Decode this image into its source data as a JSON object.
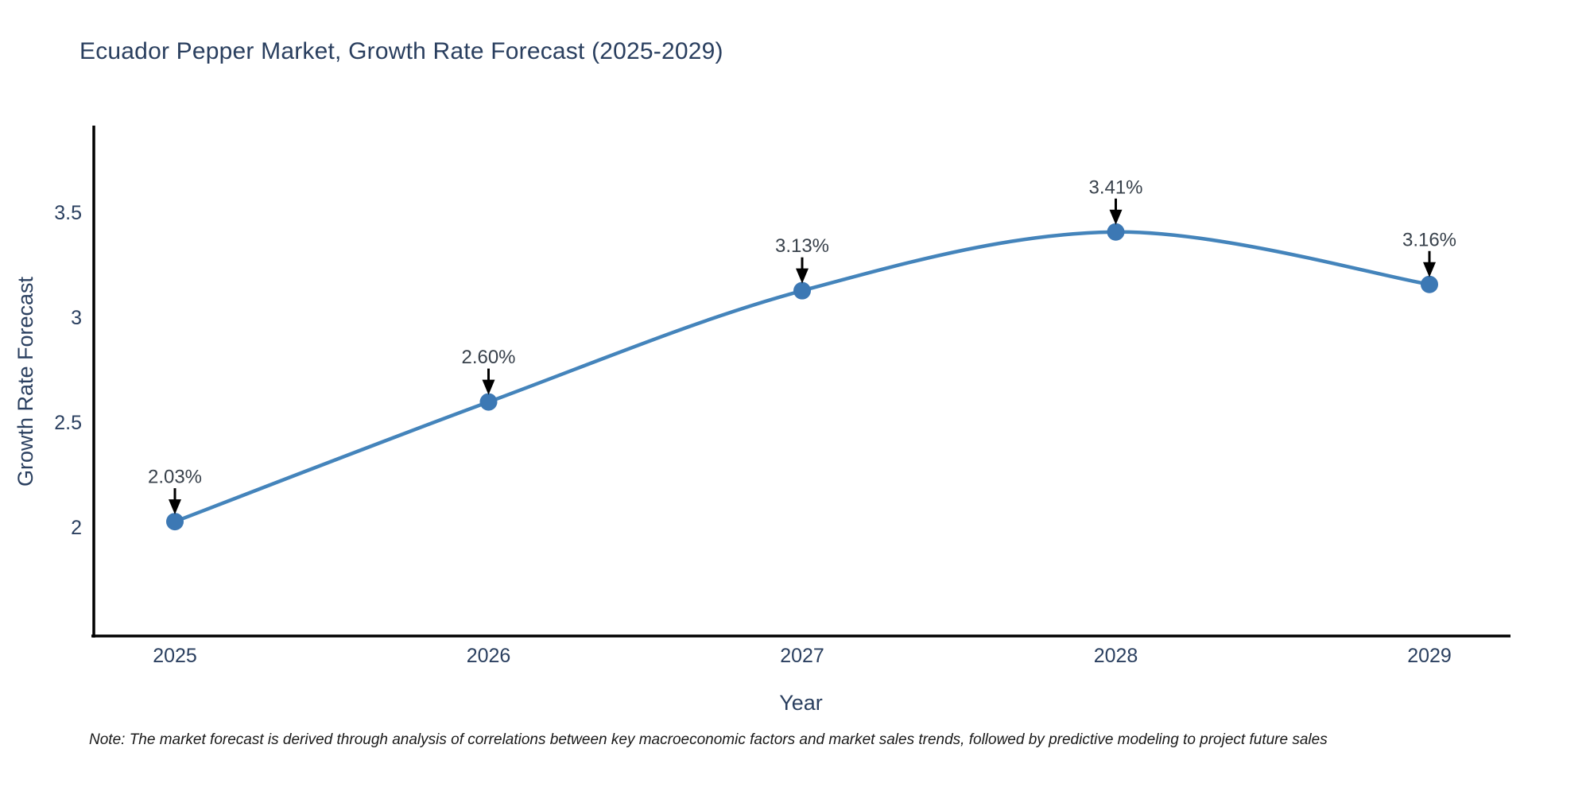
{
  "page": {
    "background": "#ffffff"
  },
  "chart_data": {
    "type": "line",
    "title": "Ecuador Pepper Market, Growth Rate Forecast (2025-2029)",
    "xlabel": "Year",
    "ylabel": "Growth Rate Forecast",
    "categories": [
      "2025",
      "2026",
      "2027",
      "2028",
      "2029"
    ],
    "x": [
      2025,
      2026,
      2027,
      2028,
      2029
    ],
    "values": [
      2.03,
      2.6,
      3.13,
      3.41,
      3.16
    ],
    "point_labels": [
      "2.03%",
      "2.60%",
      "3.13%",
      "3.41%",
      "3.16%"
    ],
    "y_ticks": [
      2,
      2.5,
      3,
      3.5
    ],
    "y_tick_labels": [
      "2",
      "2.5",
      "3",
      "3.5"
    ],
    "ylim": [
      1.48,
      3.92
    ],
    "line_shape": "spline",
    "grid": false,
    "legend": "none",
    "annotation_style": "down-arrow-to-point",
    "colors": {
      "line": "#4484bb",
      "marker": "#3c78b4",
      "arrow": "#000000",
      "axis": "#000000",
      "title_text": "#2a3f5f",
      "tick_text": "#2a3f5f",
      "axis_label_text": "#2a3f5f",
      "annotation_text": "#38414b"
    }
  },
  "note": {
    "text": "Note: The market forecast is derived through analysis of correlations between key macroeconomic factors and market sales trends, followed by predictive modeling to project future sales"
  }
}
